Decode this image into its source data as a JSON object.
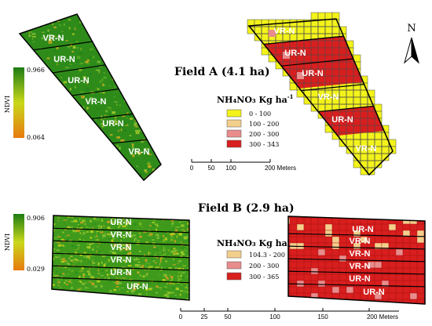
{
  "colors": {
    "ndvi_high": "#1d7d14",
    "ndvi_mid": "#c9d81a",
    "ndvi_low": "#e87a10",
    "dose_1": "#f3f31a",
    "dose_2": "#f3cf8c",
    "dose_3": "#e88c8c",
    "dose_4": "#d81e1e",
    "grid": "#4d4d4d",
    "outline": "#000000"
  },
  "north_arrow": {
    "label": "N"
  },
  "field_a": {
    "title": "Field A (4.1 ha)",
    "ndvi_legend": {
      "axis_label": "NDVI",
      "max_label": "0.966",
      "min_label": "0.064"
    },
    "fert_legend": {
      "title": "NH₄NO₃ Kg ha",
      "title_sup": "-1",
      "classes": [
        {
          "label": "0 - 100",
          "color": "#f3f31a"
        },
        {
          "label": "100 - 200",
          "color": "#f3cf8c"
        },
        {
          "label": "200 - 300",
          "color": "#e88c8c"
        },
        {
          "label": "300 - 343",
          "color": "#d81e1e"
        }
      ]
    },
    "scale_bar": {
      "ticks": [
        "0",
        "50",
        "100",
        "200 Meters"
      ]
    },
    "strips": [
      "VR-N",
      "UR-N",
      "UR-N",
      "VR-N",
      "UR-N",
      "VR-N"
    ],
    "fert_strips": [
      "VR-N",
      "UR-N",
      "UR-N",
      "VR-N",
      "UR-N",
      "VR-N"
    ]
  },
  "field_b": {
    "title": "Field B (2.9 ha)",
    "ndvi_legend": {
      "axis_label": "NDVI",
      "max_label": "0.906",
      "min_label": "0.029"
    },
    "fert_legend": {
      "title": "NH₄NO₃ Kg ha",
      "title_sup": "-1",
      "classes": [
        {
          "label": "104.3 - 200",
          "color": "#f3cf8c"
        },
        {
          "label": "200 - 300",
          "color": "#e88c8c"
        },
        {
          "label": "300 - 365",
          "color": "#d81e1e"
        }
      ]
    },
    "scale_bar": {
      "ticks": [
        "0",
        "25",
        "50",
        "100",
        "150",
        "200 Meters"
      ]
    },
    "strips": [
      "UR-N",
      "VR-N",
      "VR-N",
      "VR-N",
      "UR-N",
      "UR-N"
    ],
    "fert_strips": [
      "UR-N",
      "VR-N",
      "VR-N",
      "VR-N",
      "UR-N",
      "UR-N"
    ]
  }
}
